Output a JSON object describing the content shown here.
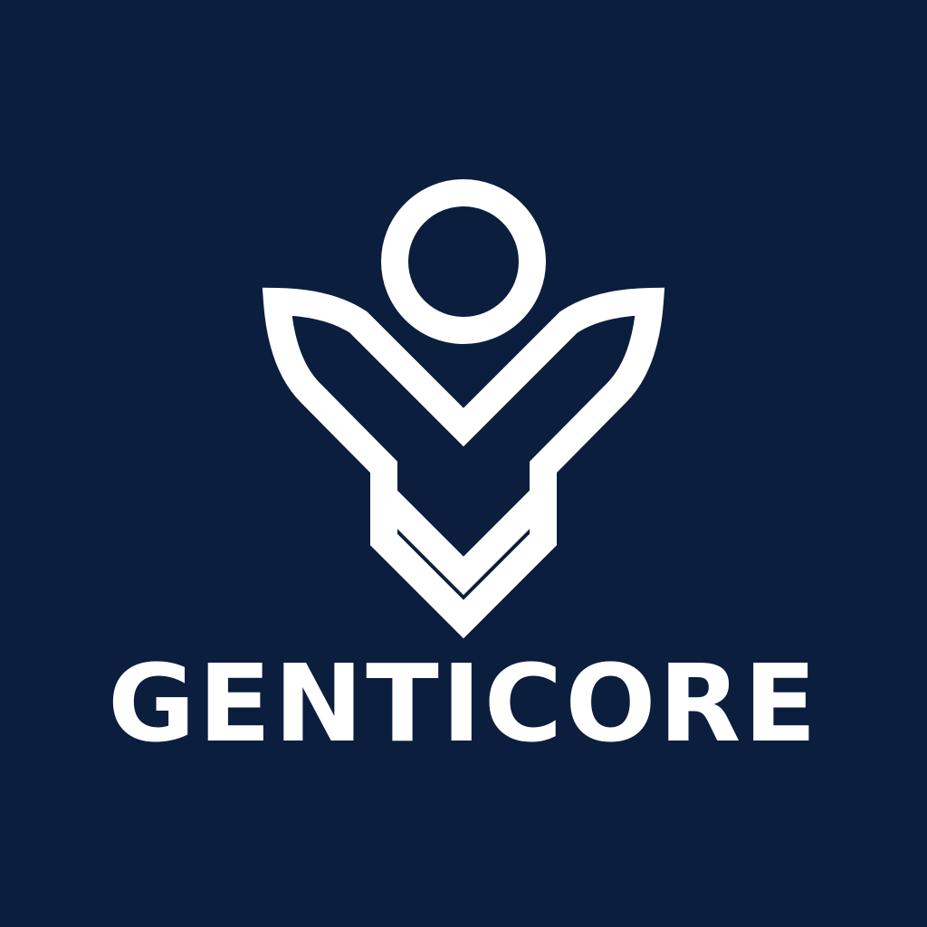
{
  "brand": {
    "name": "GENTICORE",
    "background_color": "#0c1e3e",
    "foreground_color": "#ffffff",
    "logo_icon": "person-chevron-logo-icon"
  }
}
